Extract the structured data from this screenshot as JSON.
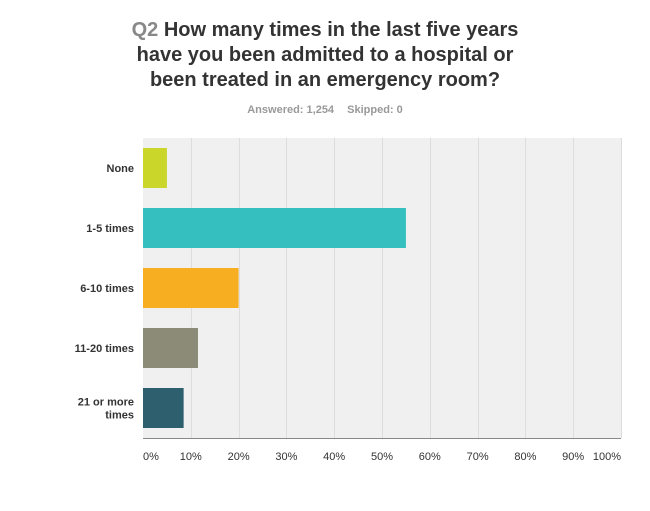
{
  "header": {
    "question_number": "Q2",
    "title_lines": [
      "How many times in the last five years",
      "have you been admitted to a hospital or",
      "been treated in an emergency room?"
    ],
    "answered": "Answered: 1,254",
    "skipped": "Skipped: 0"
  },
  "chart_data": {
    "type": "bar",
    "orientation": "horizontal",
    "categories": [
      "None",
      "1-5 times",
      "6-10 times",
      "11-20 times",
      "21 or more times"
    ],
    "values": [
      5,
      55,
      20,
      11.5,
      8.5
    ],
    "colors": [
      "#cbd62a",
      "#35bfbf",
      "#f7ae21",
      "#8b8b78",
      "#2e5f6e"
    ],
    "xlim": [
      0,
      100
    ],
    "ticks": [
      "0%",
      "10%",
      "20%",
      "30%",
      "40%",
      "50%",
      "60%",
      "70%",
      "80%",
      "90%",
      "100%"
    ],
    "grid": true,
    "legend": "none"
  }
}
